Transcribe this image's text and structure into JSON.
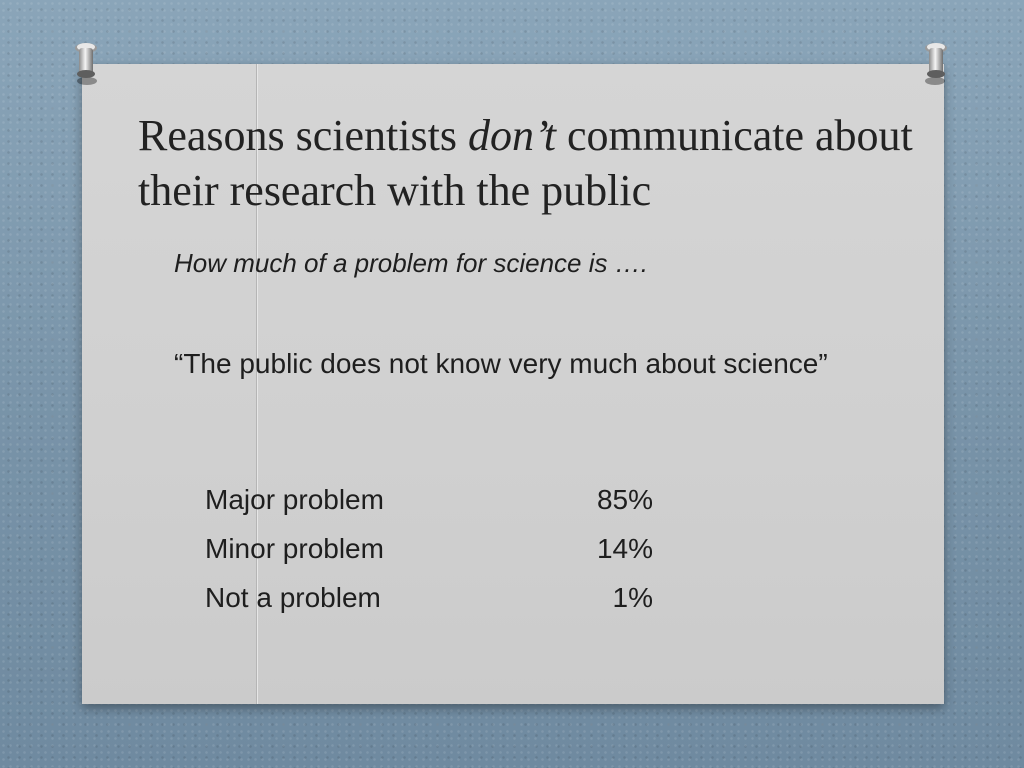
{
  "slide": {
    "title_part1": "Reasons scientists ",
    "title_emphasis": "don’t",
    "title_part2": " communicate about their research with the public",
    "subtitle": "How much of a problem for science is ….",
    "quote": "“The public does not know very much about science”",
    "responses": [
      {
        "label": "Major problem",
        "value": "85%"
      },
      {
        "label": "Minor problem",
        "value": "14%"
      },
      {
        "label": "Not a problem",
        "value": "1%"
      }
    ]
  },
  "icons": {
    "left_pin": "pushpin-icon",
    "right_pin": "pushpin-icon"
  },
  "colors": {
    "background": "#7f9bb0",
    "card": "#d3d3d3",
    "text": "#1e1e1e"
  }
}
